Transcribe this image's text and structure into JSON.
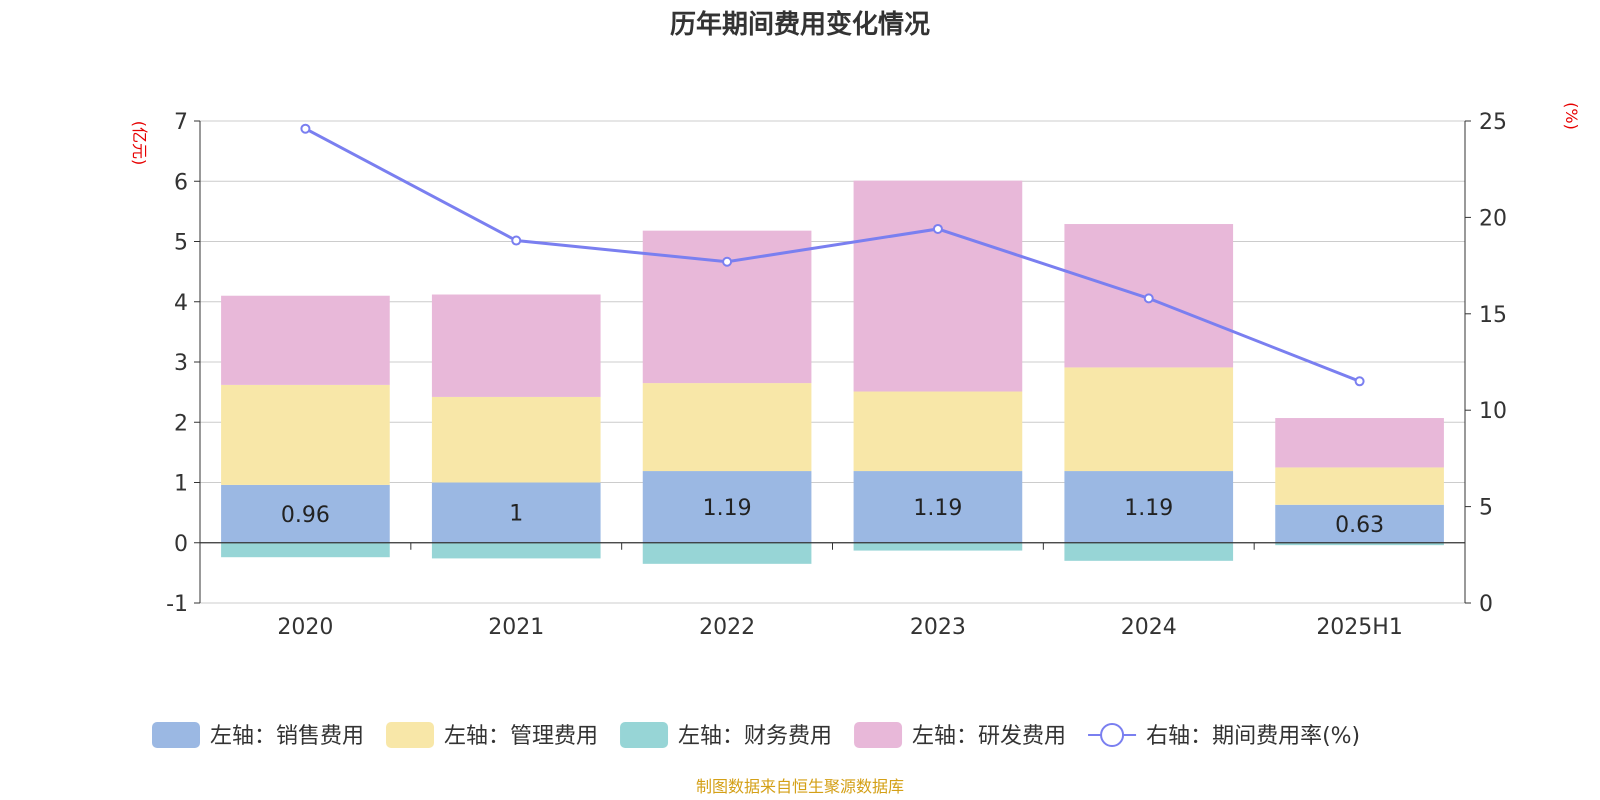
{
  "chart_data": {
    "type": "bar",
    "title": "历年期间费用变化情况",
    "categories": [
      "2020",
      "2021",
      "2022",
      "2023",
      "2024",
      "2025H1"
    ],
    "left_axis": {
      "unit": "(亿元)",
      "ylim": [
        -1,
        7
      ],
      "ticks": [
        -1,
        0,
        1,
        2,
        3,
        4,
        5,
        6,
        7
      ]
    },
    "right_axis": {
      "unit": "(%)",
      "ylim": [
        0,
        25
      ],
      "ticks": [
        0,
        5,
        10,
        15,
        20,
        25
      ]
    },
    "series": [
      {
        "name": "左轴：销售费用",
        "kind": "bar",
        "axis": "left",
        "color": "#9bb8e3",
        "values": [
          0.96,
          1.0,
          1.19,
          1.19,
          1.19,
          0.63
        ],
        "labels": [
          "0.96",
          "1",
          "1.19",
          "1.19",
          "1.19",
          "0.63"
        ]
      },
      {
        "name": "左轴：管理费用",
        "kind": "bar",
        "axis": "left",
        "color": "#f8e7a8",
        "values": [
          1.66,
          1.42,
          1.46,
          1.32,
          1.72,
          0.62
        ]
      },
      {
        "name": "左轴：财务费用",
        "kind": "bar",
        "axis": "left",
        "color": "#97d5d6",
        "values": [
          -0.24,
          -0.26,
          -0.35,
          -0.13,
          -0.3,
          -0.04
        ]
      },
      {
        "name": "左轴：研发费用",
        "kind": "bar",
        "axis": "left",
        "color": "#e8b8d9",
        "values": [
          1.48,
          1.7,
          2.53,
          3.5,
          2.38,
          0.82
        ]
      },
      {
        "name": "右轴：期间费用率(%)",
        "kind": "line",
        "axis": "right",
        "color": "#7a7ff0",
        "values": [
          24.6,
          18.8,
          17.7,
          19.4,
          15.8,
          11.5
        ]
      }
    ],
    "grid": true,
    "legend": "bottom"
  },
  "source_note": "制图数据来自恒生聚源数据库"
}
